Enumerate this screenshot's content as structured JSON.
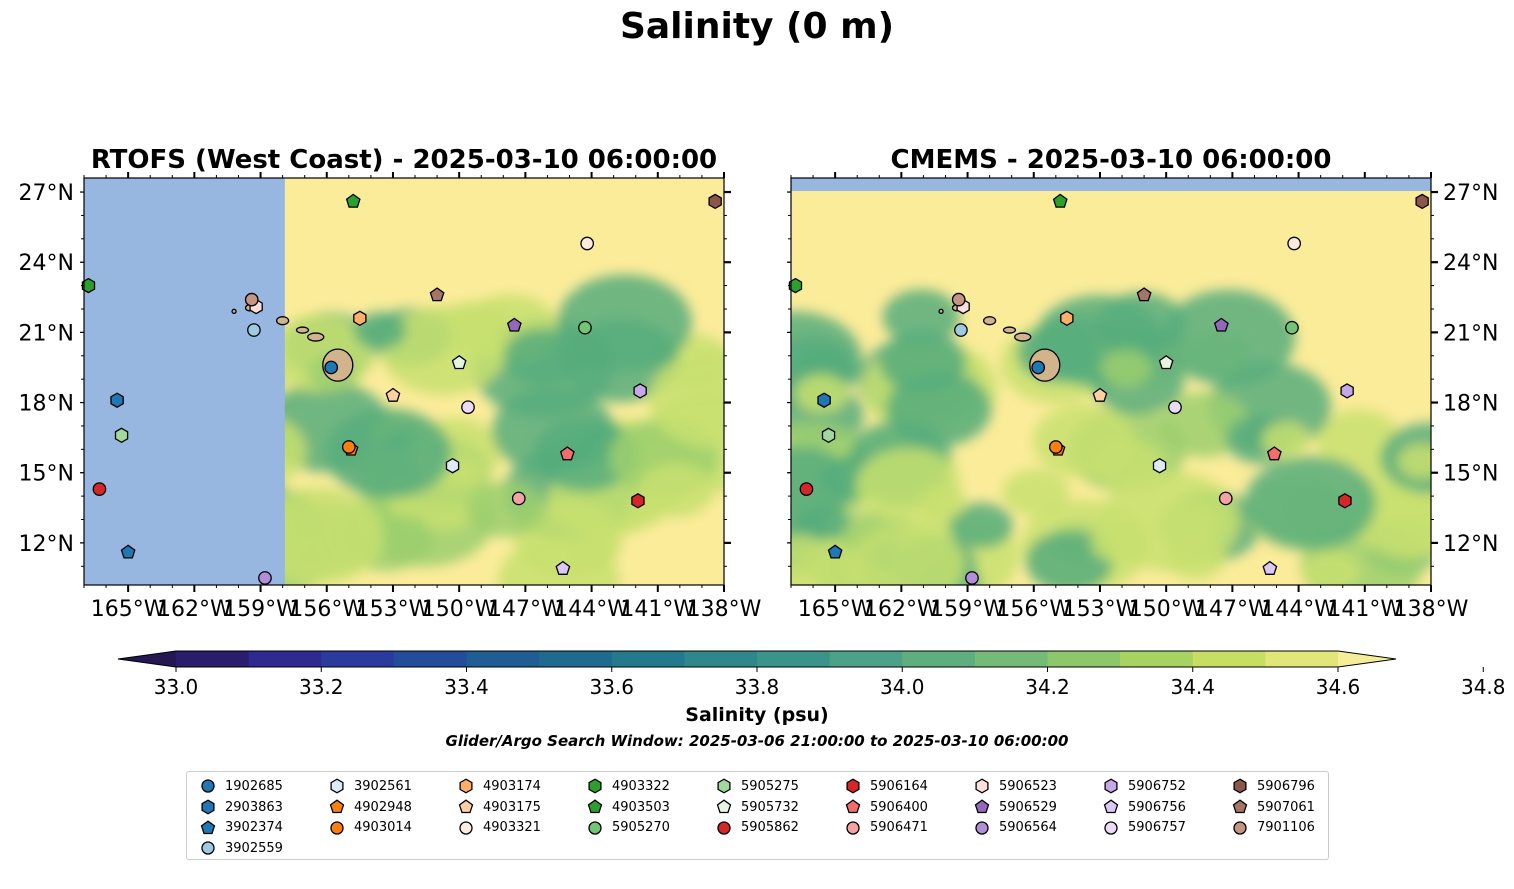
{
  "title": "Salinity (0 m)",
  "panels": [
    {
      "title": "RTOFS (West Coast) - 2025-03-10 06:00:00"
    },
    {
      "title": "CMEMS - 2025-03-10 06:00:00"
    }
  ],
  "colorbar": {
    "label": "Salinity (psu)",
    "ticks": [
      "33.0",
      "33.2",
      "33.4",
      "33.6",
      "33.8",
      "34.0",
      "34.2",
      "34.4",
      "34.6",
      "34.8"
    ],
    "colors": [
      "#2a1d6b",
      "#2e2a8f",
      "#2b3b9d",
      "#234d9b",
      "#1f5d94",
      "#1e6b8f",
      "#25798d",
      "#2f878c",
      "#3b948a",
      "#4ca288",
      "#5eae80",
      "#73bb77",
      "#8cc76c",
      "#a8d362",
      "#c6de61",
      "#e2e678"
    ],
    "under_color": "#241853",
    "over_color": "#f5ed97"
  },
  "search_window": "Glider/Argo Search Window: 2025-03-06 21:00:00 to 2025-03-10 06:00:00",
  "chart_data": {
    "type": "map",
    "variable": "Salinity",
    "units": "psu",
    "depth_m": 0,
    "lon_range": [
      -167,
      -138
    ],
    "lat_range": [
      10.2,
      27.6
    ],
    "lat_ticks": [
      "27°N",
      "24°N",
      "21°N",
      "18°N",
      "15°N",
      "12°N"
    ],
    "lon_ticks": [
      "165°W",
      "162°W",
      "159°W",
      "156°W",
      "153°W",
      "150°W",
      "147°W",
      "144°W",
      "141°W",
      "138°W"
    ],
    "field_colors": {
      "land": "#d2b48c",
      "nodata": "#97b6e0",
      "fresh_high": "#fbec9a",
      "mid": "#c8e070",
      "salty_low": "#57ad7c"
    },
    "observations": [
      {
        "id": "1902685",
        "marker": "circle",
        "color": "#1f77b4",
        "lon": -155.8,
        "lat": 19.5
      },
      {
        "id": "2903863",
        "marker": "hexagon",
        "color": "#1f77b4",
        "lon": -165.5,
        "lat": 18.1
      },
      {
        "id": "3902374",
        "marker": "pentagon",
        "color": "#1f77b4",
        "lon": -165.0,
        "lat": 11.6
      },
      {
        "id": "3902559",
        "marker": "circle",
        "color": "#9ecae1",
        "lon": -159.3,
        "lat": 21.1
      },
      {
        "id": "3902561",
        "marker": "hexagon",
        "color": "#deebf7",
        "lon": -150.3,
        "lat": 15.3
      },
      {
        "id": "4902948",
        "marker": "pentagon",
        "color": "#ff7f0e",
        "lon": -154.9,
        "lat": 16.0
      },
      {
        "id": "4903014",
        "marker": "circle",
        "color": "#ff7f0e",
        "lon": -155.0,
        "lat": 16.1
      },
      {
        "id": "4903174",
        "marker": "hexagon",
        "color": "#fdae6b",
        "lon": -154.5,
        "lat": 21.6
      },
      {
        "id": "4903175",
        "marker": "pentagon",
        "color": "#fdd0a2",
        "lon": -153.0,
        "lat": 18.3
      },
      {
        "id": "4903321",
        "marker": "circle",
        "color": "#feedde",
        "lon": -144.2,
        "lat": 24.8
      },
      {
        "id": "4903322",
        "marker": "hexagon",
        "color": "#2ca02c",
        "lon": -166.8,
        "lat": 23.0
      },
      {
        "id": "4903503",
        "marker": "pentagon",
        "color": "#2ca02c",
        "lon": -154.8,
        "lat": 26.6
      },
      {
        "id": "5905270",
        "marker": "circle",
        "color": "#74c476",
        "lon": -144.3,
        "lat": 21.2
      },
      {
        "id": "5905275",
        "marker": "hexagon",
        "color": "#a1d99b",
        "lon": -165.3,
        "lat": 16.6
      },
      {
        "id": "5905732",
        "marker": "pentagon",
        "color": "#e5f5e0",
        "lon": -150.0,
        "lat": 19.7
      },
      {
        "id": "5905862",
        "marker": "circle",
        "color": "#d62728",
        "lon": -166.3,
        "lat": 14.3
      },
      {
        "id": "5906164",
        "marker": "hexagon",
        "color": "#d62728",
        "lon": -141.9,
        "lat": 13.8
      },
      {
        "id": "5906400",
        "marker": "pentagon",
        "color": "#f46d6d",
        "lon": -145.1,
        "lat": 15.8
      },
      {
        "id": "5906471",
        "marker": "circle",
        "color": "#f4a3a3",
        "lon": -147.3,
        "lat": 13.9
      },
      {
        "id": "5906523",
        "marker": "hexagon",
        "color": "#fde0dd",
        "lon": -159.2,
        "lat": 22.1
      },
      {
        "id": "5906529",
        "marker": "pentagon",
        "color": "#9467bd",
        "lon": -147.5,
        "lat": 21.3
      },
      {
        "id": "5906564",
        "marker": "circle",
        "color": "#b28ed8",
        "lon": -158.8,
        "lat": 10.5
      },
      {
        "id": "5906752",
        "marker": "hexagon",
        "color": "#c5a8e8",
        "lon": -141.8,
        "lat": 18.5
      },
      {
        "id": "5906756",
        "marker": "pentagon",
        "color": "#ddc8f5",
        "lon": -145.3,
        "lat": 10.9
      },
      {
        "id": "5906757",
        "marker": "circle",
        "color": "#eadbf7",
        "lon": -149.6,
        "lat": 17.8
      },
      {
        "id": "5906796",
        "marker": "hexagon",
        "color": "#8c564b",
        "lon": -138.4,
        "lat": 26.6
      },
      {
        "id": "5907061",
        "marker": "pentagon",
        "color": "#a67566",
        "lon": -151.0,
        "lat": 22.6
      },
      {
        "id": "7901106",
        "marker": "circle",
        "color": "#c49484",
        "lon": -159.4,
        "lat": 22.4
      }
    ]
  }
}
